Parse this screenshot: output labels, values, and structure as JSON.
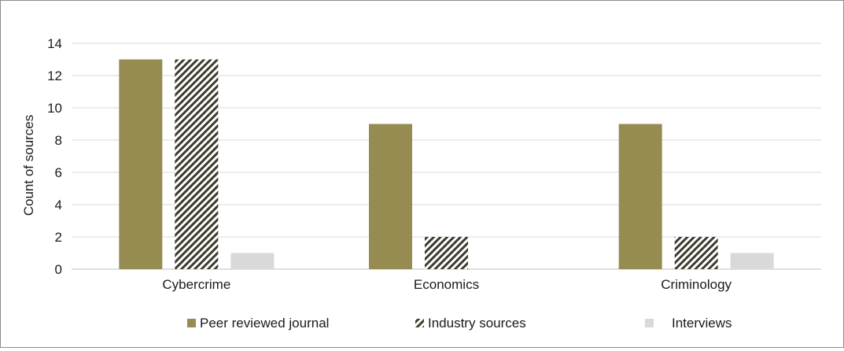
{
  "chart_data": {
    "type": "bar",
    "categories": [
      "Cybercrime",
      "Economics",
      "Criminology"
    ],
    "series": [
      {
        "name": "Peer reviewed journal",
        "values": [
          13,
          9,
          9
        ],
        "color": "#968c52",
        "pattern": "solid"
      },
      {
        "name": "Industry sources",
        "values": [
          13,
          2,
          2
        ],
        "color": "#3d3a2e",
        "pattern": "diagonal-hatch"
      },
      {
        "name": "Interviews",
        "values": [
          1,
          0,
          1
        ],
        "color": "#d9d9d9",
        "pattern": "solid"
      }
    ],
    "title": "",
    "xlabel": "",
    "ylabel": "Count of sources",
    "ylim": [
      0,
      14
    ],
    "yticks": [
      0,
      2,
      4,
      6,
      8,
      10,
      12,
      14
    ],
    "grid": true,
    "legend_position": "bottom"
  }
}
